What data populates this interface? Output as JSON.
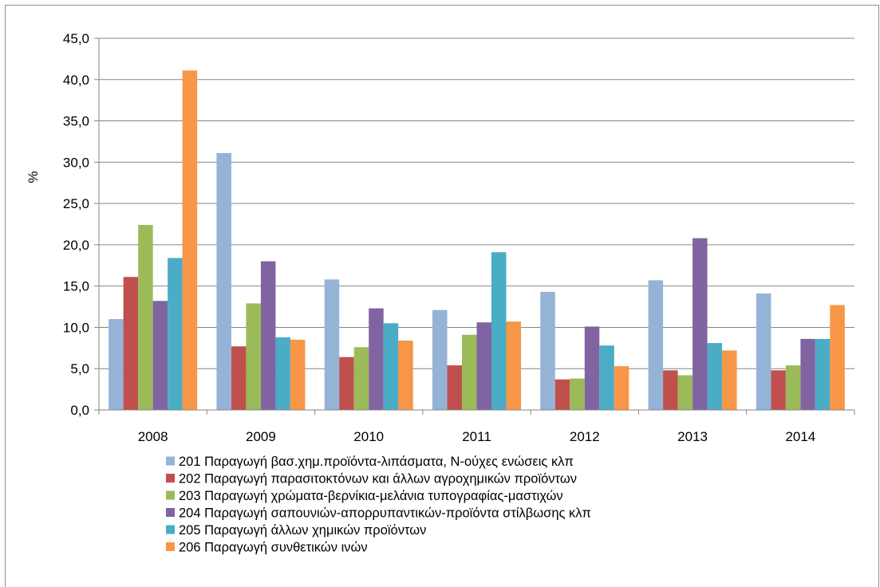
{
  "chart_data": {
    "type": "bar",
    "title": "",
    "xlabel": "",
    "ylabel": "%",
    "ylim": [
      0,
      45
    ],
    "y_tick_step": 5,
    "grid": true,
    "legend_position": "bottom",
    "categories": [
      "2008",
      "2009",
      "2010",
      "2011",
      "2012",
      "2013",
      "2014"
    ],
    "series": [
      {
        "name": "201 Παραγωγή βασ.χημ.προϊόντα-λιπάσματα, Ν-ούχες ενώσεις κλπ",
        "color": "#95b3d7",
        "values": [
          11.0,
          31.1,
          15.8,
          12.1,
          14.3,
          15.7,
          14.1
        ]
      },
      {
        "name": "202 Παραγωγή παρασιτοκτόνων και άλλων αγροχημικών προϊόντων",
        "color": "#c0504d",
        "values": [
          16.1,
          7.7,
          6.4,
          5.4,
          3.7,
          4.8,
          4.8
        ]
      },
      {
        "name": "203 Παραγωγή χρώματα-βερνίκια-μελάνια τυπογραφίας-μαστιχών",
        "color": "#9bbb59",
        "values": [
          22.4,
          12.9,
          7.6,
          9.1,
          3.8,
          4.2,
          5.4
        ]
      },
      {
        "name": "204 Παραγωγή σαπουνιών-απορρυπαντικών-προϊόντα στίλβωσης κλπ",
        "color": "#8064a2",
        "values": [
          13.2,
          18.0,
          12.3,
          10.6,
          10.1,
          20.8,
          8.6
        ]
      },
      {
        "name": "205 Παραγωγή άλλων χημικών προϊόντων",
        "color": "#4bacc6",
        "values": [
          18.4,
          8.8,
          10.5,
          19.1,
          7.8,
          8.1,
          8.6
        ]
      },
      {
        "name": "206 Παραγωγή συνθετικών ινών",
        "color": "#f79646",
        "values": [
          41.1,
          8.5,
          8.4,
          10.7,
          5.3,
          7.2,
          12.7
        ]
      }
    ]
  }
}
